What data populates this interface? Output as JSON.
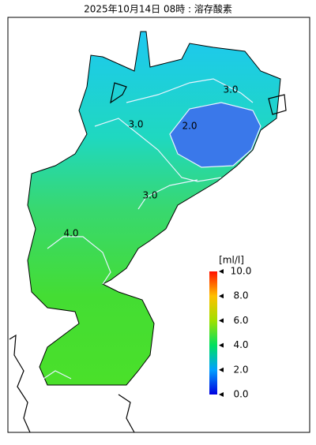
{
  "title": "2025年10月14日 08時 : 溶存酸素",
  "colorbar": {
    "unit": "[ml/l]",
    "range": [
      0,
      10
    ],
    "ticks": [
      {
        "value": 0,
        "label": "0.0"
      },
      {
        "value": 2,
        "label": "2.0"
      },
      {
        "value": 4,
        "label": "4.0"
      },
      {
        "value": 6,
        "label": "6.0"
      },
      {
        "value": 8,
        "label": "8.0"
      },
      {
        "value": 10,
        "label": "10.0"
      }
    ]
  },
  "contour_labels": [
    "3.0",
    "3.0",
    "2.0",
    "3.0",
    "4.0"
  ]
}
